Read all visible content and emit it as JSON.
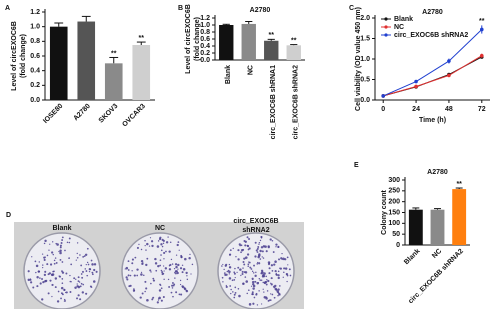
{
  "chart_data": [
    {
      "type": "bar",
      "panel": "A",
      "ylabel": [
        "Level of circEXOC6B",
        "(fold change)"
      ],
      "categories": [
        "IOSE80",
        "A2780",
        "SKOV3",
        "OVCAR3"
      ],
      "values": [
        1.0,
        1.07,
        0.5,
        0.75
      ],
      "errors": [
        0.05,
        0.07,
        0.08,
        0.04
      ],
      "colors": [
        "#111111",
        "#555555",
        "#8a8a8a",
        "#cfcfcf"
      ],
      "significance": [
        null,
        null,
        "**",
        "**"
      ],
      "ylim": [
        0,
        1.2
      ],
      "yticks": [
        {
          "value": 0,
          "label": "0.0"
        },
        0.2,
        0.4,
        0.6,
        0.8,
        {
          "value": 1,
          "label": "1.0"
        },
        1.2
      ]
    },
    {
      "type": "bar",
      "panel": "B",
      "title": "A2780",
      "ylabel": [
        "Level of circEXOC6B",
        "(fold change)"
      ],
      "categories": [
        "Blank",
        "NC",
        "circ_EXOC6B shRNA1",
        "circ_EXOC6B shRNA2"
      ],
      "values": [
        1.0,
        1.03,
        0.55,
        0.42
      ],
      "errors": [
        0.02,
        0.07,
        0.04,
        0.02
      ],
      "colors": [
        "#111111",
        "#8a8a8a",
        "#555555",
        "#cfcfcf"
      ],
      "significance": [
        null,
        null,
        "**",
        "**"
      ],
      "ylim": [
        0,
        1.2
      ],
      "yticks": [
        {
          "value": 0,
          "label": "0.0"
        },
        0.2,
        0.4,
        0.6,
        0.8,
        {
          "value": 1,
          "label": "1.0"
        },
        1.2
      ]
    },
    {
      "type": "line",
      "panel": "C",
      "title": "A2780",
      "ylabel": [
        "Cell viability (OD value 450 nm)"
      ],
      "xlabel": "Time (h)",
      "x": [
        0,
        24,
        48,
        72
      ],
      "series": [
        {
          "name": "Blank",
          "color": "#111111",
          "values": [
            0.1,
            0.32,
            0.62,
            1.05
          ],
          "errors": [
            0.01,
            0.02,
            0.02,
            0.04
          ]
        },
        {
          "name": "NC",
          "color": "#e03030",
          "values": [
            0.1,
            0.33,
            0.6,
            1.08
          ],
          "errors": [
            0.01,
            0.02,
            0.03,
            0.05
          ]
        },
        {
          "name": "circ_EXOC6B shRNA2",
          "color": "#2040d0",
          "values": [
            0.1,
            0.45,
            0.95,
            1.72
          ],
          "errors": [
            0.01,
            0.03,
            0.06,
            0.1
          ]
        }
      ],
      "significance": [
        null,
        null,
        null,
        "**"
      ],
      "xlim": [
        -6,
        78
      ],
      "xticks": [
        0,
        24,
        48,
        72
      ],
      "ylim": [
        0,
        2
      ],
      "yticks": [
        {
          "value": 0,
          "label": "0.0"
        },
        0.5,
        {
          "value": 1,
          "label": "1.0"
        },
        1.5,
        {
          "value": 2,
          "label": "2.0"
        }
      ],
      "legend": "top-left"
    },
    {
      "type": "image",
      "panel": "D",
      "labels": [
        "Blank",
        "NC",
        "circ_EXOC6B shRNA2"
      ]
    },
    {
      "type": "bar",
      "panel": "E",
      "title": "A2780",
      "ylabel": [
        "Colony count"
      ],
      "categories": [
        "Blank",
        "NC",
        "circ_EXOC6B shRNA2"
      ],
      "values": [
        163,
        163,
        258
      ],
      "errors": [
        8,
        5,
        5
      ],
      "colors": [
        "#111111",
        "#8a8a8a",
        "#ff7f0e"
      ],
      "significance": [
        null,
        null,
        "**"
      ],
      "ylim": [
        0,
        300
      ],
      "yticks": [
        0,
        50,
        100,
        150,
        200,
        250,
        300
      ]
    }
  ]
}
